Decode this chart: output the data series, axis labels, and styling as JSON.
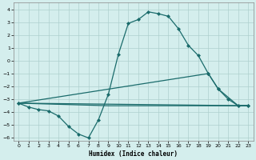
{
  "xlabel": "Humidex (Indice chaleur)",
  "xlim": [
    -0.5,
    23.5
  ],
  "ylim": [
    -6.2,
    4.5
  ],
  "yticks": [
    -6,
    -5,
    -4,
    -3,
    -2,
    -1,
    0,
    1,
    2,
    3,
    4
  ],
  "xticks": [
    0,
    1,
    2,
    3,
    4,
    5,
    6,
    7,
    8,
    9,
    10,
    11,
    12,
    13,
    14,
    15,
    16,
    17,
    18,
    19,
    20,
    21,
    22,
    23
  ],
  "bg_color": "#d4eeed",
  "grid_color": "#aed0ce",
  "line_color": "#1a6b6b",
  "series": [
    {
      "x": [
        0,
        1,
        2,
        3,
        4,
        5,
        6,
        7,
        8,
        9,
        10,
        11,
        12,
        13,
        14,
        15,
        16,
        17,
        18,
        19,
        20,
        21,
        22,
        23
      ],
      "y": [
        -3.3,
        -3.6,
        -3.8,
        -3.9,
        -4.3,
        -5.1,
        -5.7,
        -6.0,
        -4.6,
        -2.6,
        0.5,
        2.9,
        3.2,
        3.8,
        3.65,
        3.45,
        2.5,
        1.2,
        0.4,
        -1.0,
        -2.2,
        -3.0,
        -3.5,
        -3.5
      ],
      "marker": "D",
      "markersize": 2.0,
      "linewidth": 0.9
    },
    {
      "x": [
        0,
        19,
        20,
        22,
        23
      ],
      "y": [
        -3.3,
        -1.0,
        -2.2,
        -3.5,
        -3.5
      ],
      "marker": "D",
      "markersize": 2.0,
      "linewidth": 0.9
    },
    {
      "x": [
        0,
        23
      ],
      "y": [
        -3.3,
        -3.5
      ],
      "marker": null,
      "markersize": 0,
      "linewidth": 0.9
    },
    {
      "x": [
        0,
        9,
        22,
        23
      ],
      "y": [
        -3.3,
        -3.5,
        -3.5,
        -3.5
      ],
      "marker": null,
      "markersize": 0,
      "linewidth": 0.9
    }
  ]
}
